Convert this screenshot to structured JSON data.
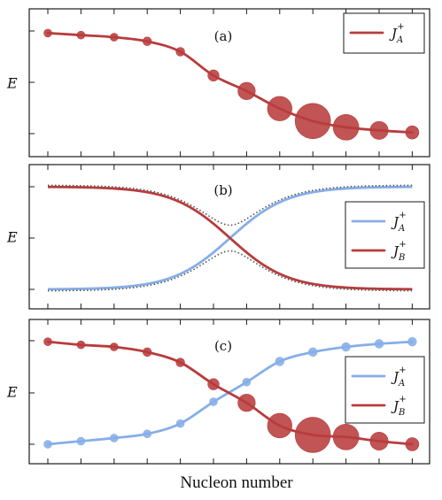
{
  "colors": {
    "red": "#b83c3c",
    "blue": "#86aee8",
    "dots": "#555555"
  },
  "xlabel": "Nucleon number",
  "chart_data": [
    {
      "type": "line",
      "panel_label": "(a)",
      "ylabel": "E",
      "x": [
        0,
        1,
        2,
        3,
        4,
        5,
        6,
        7,
        8,
        9,
        10,
        11
      ],
      "series": [
        {
          "name": "J_A^+",
          "legend_symbol": "J",
          "legend_sub": "A",
          "legend_sup": "+",
          "color": "red",
          "values": [
            0.98,
            0.96,
            0.94,
            0.9,
            0.8,
            0.57,
            0.42,
            0.25,
            0.13,
            0.07,
            0.04,
            0.02
          ],
          "weights": [
            0.05,
            0.05,
            0.05,
            0.06,
            0.06,
            0.1,
            0.24,
            0.48,
            1.0,
            0.53,
            0.26,
            0.14
          ]
        }
      ],
      "legend_position": "top-right"
    },
    {
      "type": "line",
      "panel_label": "(b)",
      "ylabel": "E",
      "x_range": [
        0,
        11
      ],
      "series": [
        {
          "name": "J_A^+",
          "legend_symbol": "J",
          "legend_sub": "A",
          "legend_sup": "+",
          "color": "blue",
          "kind": "diabatic",
          "lower_end": 0.0,
          "upper_end": 1.0
        },
        {
          "name": "J_B^+",
          "legend_symbol": "J",
          "legend_sub": "B",
          "legend_sup": "+",
          "color": "red",
          "kind": "diabatic",
          "lower_end": 0.0,
          "upper_end": 1.0
        },
        {
          "name": "",
          "color": "dots",
          "kind": "adiabatic-dotted",
          "gap": 0.25
        }
      ],
      "legend_position": "right"
    },
    {
      "type": "line",
      "panel_label": "(c)",
      "ylabel": "E",
      "x": [
        0,
        1,
        2,
        3,
        4,
        5,
        6,
        7,
        8,
        9,
        10,
        11
      ],
      "series": [
        {
          "name": "J_A^+",
          "legend_symbol": "J",
          "legend_sub": "A",
          "legend_sup": "+",
          "color": "blue",
          "values": [
            0.0,
            0.03,
            0.06,
            0.1,
            0.2,
            0.41,
            0.6,
            0.8,
            0.89,
            0.94,
            0.97,
            0.99
          ],
          "weights": [
            0.05,
            0.05,
            0.05,
            0.05,
            0.05,
            0.05,
            0.05,
            0.06,
            0.06,
            0.06,
            0.06,
            0.06
          ]
        },
        {
          "name": "J_B^+",
          "legend_symbol": "J",
          "legend_sub": "B",
          "legend_sup": "+",
          "color": "red",
          "values": [
            0.99,
            0.96,
            0.94,
            0.89,
            0.79,
            0.58,
            0.4,
            0.18,
            0.09,
            0.07,
            0.03,
            0.0
          ],
          "weights": [
            0.05,
            0.05,
            0.05,
            0.06,
            0.06,
            0.1,
            0.24,
            0.48,
            1.0,
            0.53,
            0.26,
            0.14
          ]
        }
      ],
      "legend_position": "right"
    }
  ]
}
